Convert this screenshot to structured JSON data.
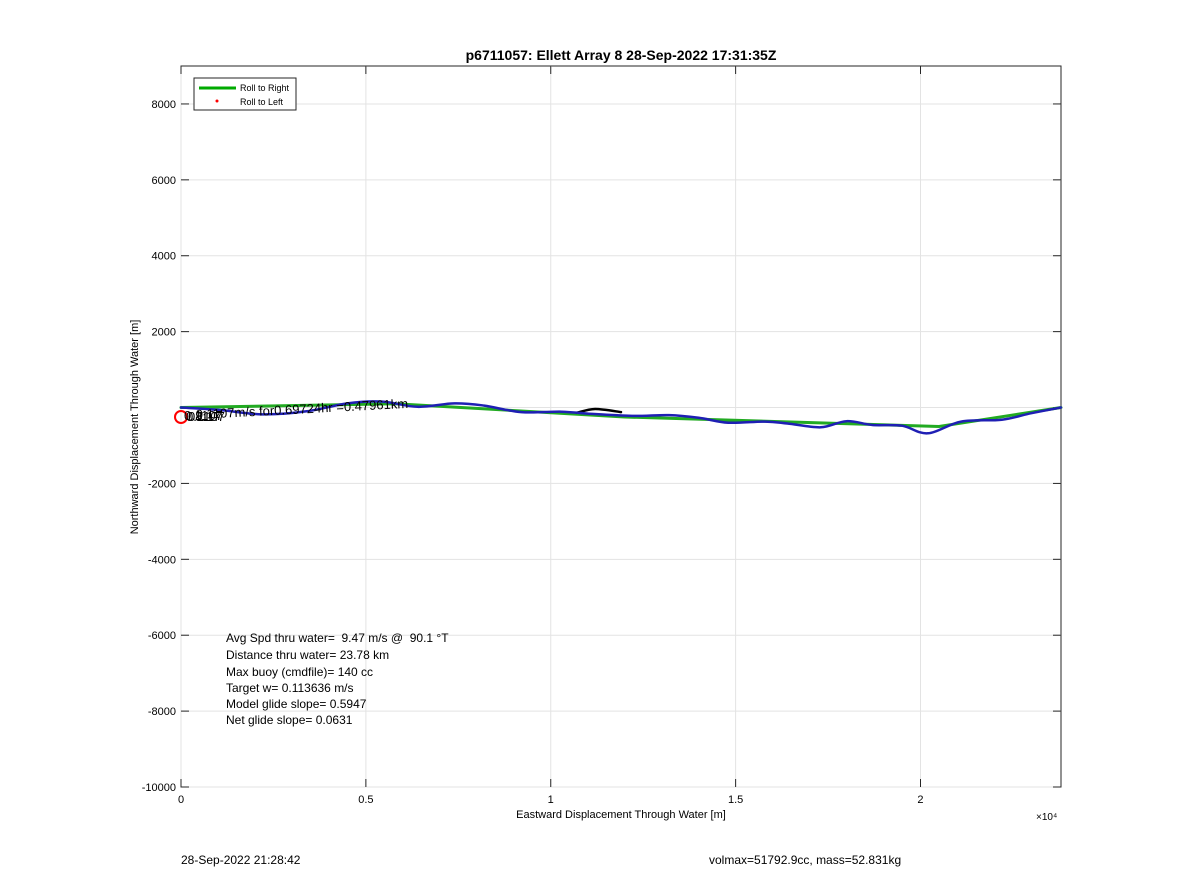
{
  "chart_data": {
    "type": "line",
    "title": "p6711057: Ellett Array 8 28-Sep-2022 17:31:35Z",
    "xlabel": "Eastward Displacement Through Water [m]",
    "ylabel": "Northward Displacement Through Water [m]",
    "x_exponent_label": "×10⁴",
    "xlim": [
      0,
      23800
    ],
    "ylim": [
      -10000,
      9000
    ],
    "x_ticks": [
      0,
      5000,
      10000,
      15000,
      20000
    ],
    "x_tick_labels": [
      "0",
      "0.5",
      "1",
      "1.5",
      "2"
    ],
    "y_ticks": [
      -10000,
      -8000,
      -6000,
      -4000,
      -2000,
      0,
      2000,
      4000,
      6000,
      8000
    ],
    "y_tick_labels": [
      "-10000",
      "-8000",
      "-6000",
      "-4000",
      "-2000",
      "",
      "2000",
      "4000",
      "6000",
      "8000"
    ],
    "grid": true,
    "legend_location": "top-left",
    "legend": [
      {
        "label": "Roll to Right",
        "color": "#00aa00",
        "style": "line"
      },
      {
        "label": "Roll to Left",
        "color": "#ff0000",
        "style": "dot"
      }
    ],
    "series": [
      {
        "name": "Roll to Right",
        "color": "#22aa22",
        "x": [
          0,
          5800,
          12000,
          20500,
          23800
        ],
        "y": [
          0,
          100,
          -250,
          -500,
          0
        ]
      },
      {
        "color": "#000000",
        "x": [
          10700,
          11200,
          11900
        ],
        "y": [
          -140,
          -40,
          -120
        ]
      },
      {
        "color": "#1f1fb4",
        "x": [
          0,
          1000,
          2200,
          3400,
          4500,
          5400,
          6400,
          7400,
          8200,
          9200,
          10300,
          11000,
          12200,
          13200,
          14000,
          14800,
          15800,
          16400,
          17300,
          18000,
          18700,
          19500,
          20200,
          21100,
          22200,
          23000,
          23800
        ],
        "y": [
          0,
          -60,
          -180,
          -100,
          110,
          160,
          20,
          110,
          50,
          -120,
          -110,
          -160,
          -220,
          -200,
          -270,
          -400,
          -370,
          -420,
          -520,
          -360,
          -460,
          -480,
          -680,
          -370,
          -320,
          -150,
          0
        ]
      }
    ],
    "annotations": {
      "track_label": "0.1107m/s for0.69724hr =0.47961km",
      "start_labels": [
        "08:17",
        "0.1107",
        "0.1107"
      ],
      "stats": [
        "Avg Spd thru water=  9.47 m/s @  90.1 °T",
        "Distance thru water= 23.78 km",
        "Max buoy (cmdfile)= 140 cc",
        "Target w= 0.113636 m/s",
        "Model glide slope= 0.5947",
        "Net glide slope= 0.0631"
      ]
    },
    "markers": [
      {
        "kind": "start-circle",
        "x": 0,
        "y": 0,
        "color": "#ff0000"
      }
    ]
  },
  "footer": {
    "timestamp": "28-Sep-2022 21:28:42",
    "vehicle_info": "volmax=51792.9cc, mass=52.831kg"
  }
}
